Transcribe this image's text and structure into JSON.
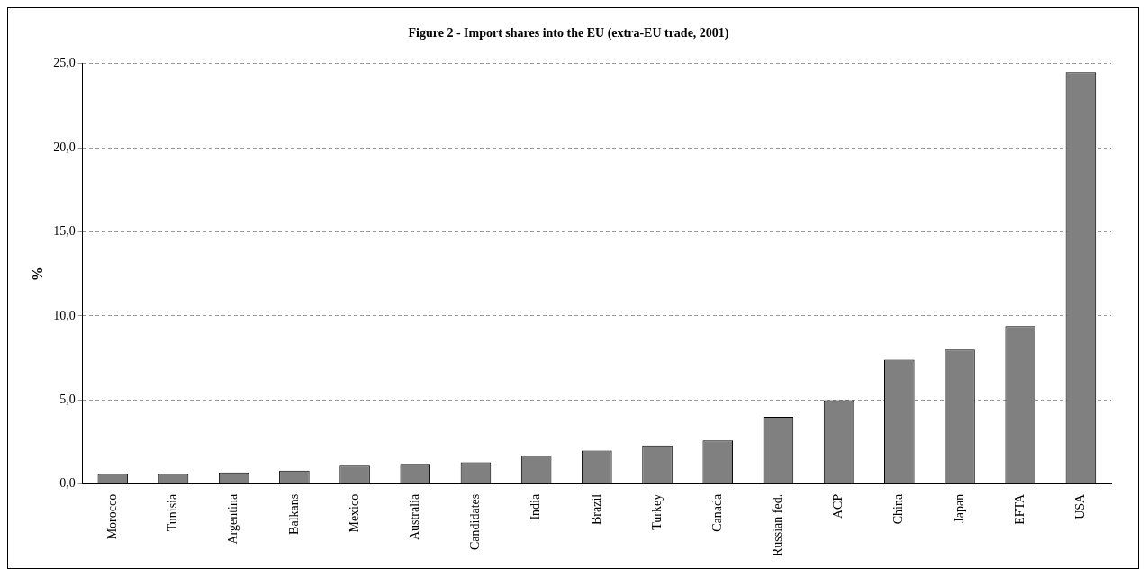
{
  "chart_data": {
    "type": "bar",
    "title": "Figure 2 - Import shares into the EU (extra-EU trade, 2001)",
    "ylabel": "%",
    "categories": [
      "Morocco",
      "Tunisia",
      "Argentina",
      "Balkans",
      "Mexico",
      "Australia",
      "Candidates",
      "India",
      "Brazil",
      "Turkey",
      "Canada",
      "Russian fed.",
      "ACP",
      "China",
      "Japan",
      "EFTA",
      "USA"
    ],
    "values": [
      0.6,
      0.6,
      0.7,
      0.8,
      1.1,
      1.2,
      1.3,
      1.7,
      2.0,
      2.3,
      2.6,
      4.0,
      5.0,
      7.4,
      8.0,
      9.4,
      24.5
    ],
    "color": "#808080",
    "ylim": [
      0,
      25
    ],
    "yticks": [
      {
        "value": 0,
        "label": "0,0"
      },
      {
        "value": 5,
        "label": "5,0"
      },
      {
        "value": 10,
        "label": "10,0"
      },
      {
        "value": 15,
        "label": "15,0"
      },
      {
        "value": 20,
        "label": "20,0"
      },
      {
        "value": 25,
        "label": "25,0"
      }
    ],
    "grid": "y",
    "legend": false
  }
}
